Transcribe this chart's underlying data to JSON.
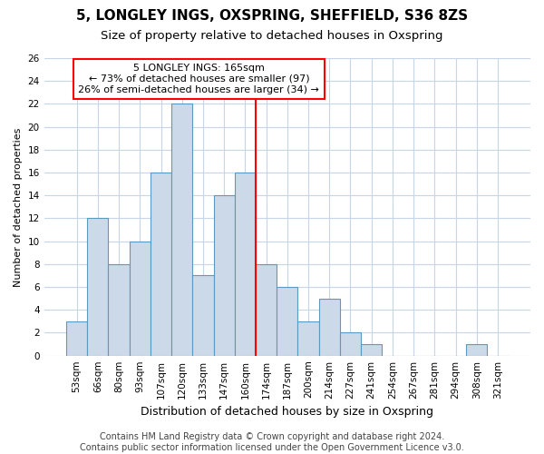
{
  "title1": "5, LONGLEY INGS, OXSPRING, SHEFFIELD, S36 8ZS",
  "title2": "Size of property relative to detached houses in Oxspring",
  "xlabel": "Distribution of detached houses by size in Oxspring",
  "ylabel": "Number of detached properties",
  "bar_labels": [
    "53sqm",
    "66sqm",
    "80sqm",
    "93sqm",
    "107sqm",
    "120sqm",
    "133sqm",
    "147sqm",
    "160sqm",
    "174sqm",
    "187sqm",
    "200sqm",
    "214sqm",
    "227sqm",
    "241sqm",
    "254sqm",
    "267sqm",
    "281sqm",
    "294sqm",
    "308sqm",
    "321sqm"
  ],
  "bar_values": [
    3,
    12,
    8,
    10,
    16,
    22,
    7,
    14,
    16,
    8,
    6,
    3,
    5,
    2,
    1,
    0,
    0,
    0,
    0,
    1,
    0
  ],
  "bar_color": "#ccd9e8",
  "bar_edge_color": "#5a9abf",
  "vline_color": "red",
  "vline_x": 8.5,
  "annotation_line1": "5 LONGLEY INGS: 165sqm",
  "annotation_line2": "← 73% of detached houses are smaller (97)",
  "annotation_line3": "26% of semi-detached houses are larger (34) →",
  "annotation_box_color": "white",
  "annotation_box_edge": "red",
  "ylim": [
    0,
    26
  ],
  "yticks": [
    0,
    2,
    4,
    6,
    8,
    10,
    12,
    14,
    16,
    18,
    20,
    22,
    24,
    26
  ],
  "grid_color": "#c8d4e8",
  "footer_text": "Contains HM Land Registry data © Crown copyright and database right 2024.\nContains public sector information licensed under the Open Government Licence v3.0.",
  "title1_fontsize": 11,
  "title2_fontsize": 9.5,
  "annotation_fontsize": 8,
  "footer_fontsize": 7,
  "xlabel_fontsize": 9,
  "ylabel_fontsize": 8,
  "tick_fontsize": 7.5,
  "background_color": "#ffffff"
}
